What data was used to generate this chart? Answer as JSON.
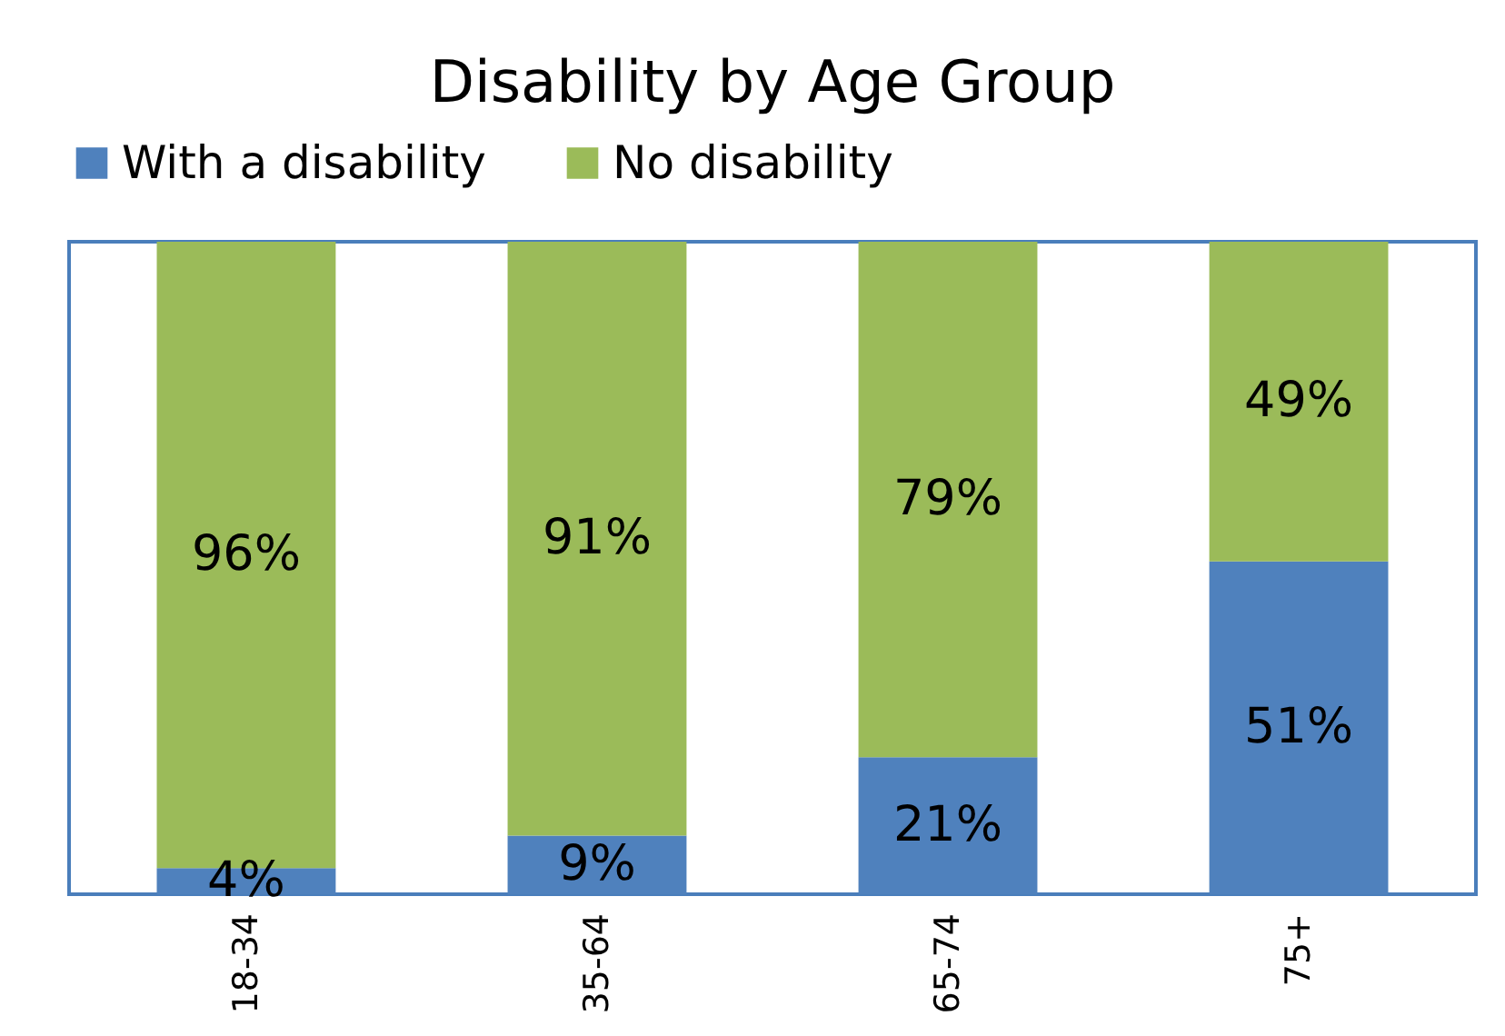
{
  "chart_data": {
    "type": "bar",
    "title": "Disability by Age Group",
    "categories": [
      "18-34",
      "35-64",
      "65-74",
      "75+"
    ],
    "stacked": true,
    "legend": "top",
    "series": [
      {
        "name": "With a disability",
        "color": "#4f81bd",
        "values": [
          4,
          9,
          21,
          51
        ],
        "value_labels": [
          "4%",
          "9%",
          "21%",
          "51%"
        ]
      },
      {
        "name": "No disability",
        "color": "#9bbb59",
        "values": [
          96,
          91,
          79,
          49
        ],
        "value_labels": [
          "96%",
          "91%",
          "79%",
          "49%"
        ]
      }
    ]
  }
}
